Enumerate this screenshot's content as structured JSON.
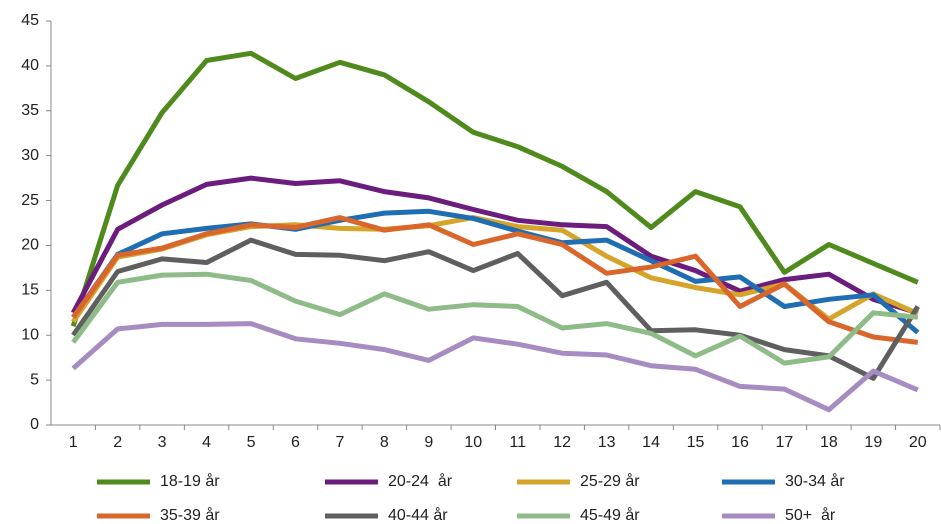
{
  "chart_data": {
    "type": "line",
    "categories": [
      "1",
      "2",
      "3",
      "4",
      "5",
      "6",
      "7",
      "8",
      "9",
      "10",
      "11",
      "12",
      "13",
      "14",
      "15",
      "16",
      "17",
      "18",
      "19",
      "20"
    ],
    "ylim": [
      0,
      45
    ],
    "yticks": [
      0,
      5,
      10,
      15,
      20,
      25,
      30,
      35,
      40,
      45
    ],
    "grid": false,
    "series": [
      {
        "name": "18-19 år",
        "color": "#4e8a1c",
        "values": [
          11,
          26.7,
          34.8,
          40.6,
          41.4,
          38.6,
          40.4,
          39,
          36,
          32.6,
          31,
          28.8,
          26,
          22,
          26,
          24.3,
          17,
          20.1,
          18,
          15.9
        ]
      },
      {
        "name": "20-24  år",
        "color": "#6b1c7c",
        "values": [
          12.5,
          21.8,
          24.5,
          26.8,
          27.5,
          26.9,
          27.2,
          26,
          25.3,
          24,
          22.8,
          22.3,
          22.1,
          18.8,
          17.2,
          14.9,
          16.2,
          16.8,
          14,
          12.5
        ]
      },
      {
        "name": "25-29 år",
        "color": "#d6a32b",
        "values": [
          11.5,
          18.7,
          19.6,
          21.2,
          22.1,
          22.3,
          21.9,
          21.8,
          22.2,
          23.1,
          22.1,
          21.7,
          18.8,
          16.4,
          15.3,
          14.5,
          15.7,
          11.8,
          14.6,
          12.4
        ]
      },
      {
        "name": "30-34 år",
        "color": "#1f6db3",
        "values": [
          12,
          19,
          21.3,
          21.9,
          22.4,
          21.8,
          22.8,
          23.6,
          23.8,
          23,
          21.6,
          20.3,
          20.6,
          18.3,
          16,
          16.5,
          13.2,
          14,
          14.5,
          10.3
        ]
      },
      {
        "name": "35-39 år",
        "color": "#d9662a",
        "values": [
          12,
          18.9,
          19.7,
          21.3,
          22.3,
          22,
          23.1,
          21.7,
          22.3,
          20.1,
          21.3,
          20.1,
          16.9,
          17.6,
          18.8,
          13.2,
          15.7,
          11.5,
          9.8,
          9.2
        ]
      },
      {
        "name": "40-44 år",
        "color": "#5f5f5f",
        "values": [
          10,
          17.1,
          18.5,
          18.1,
          20.6,
          19,
          18.9,
          18.3,
          19.3,
          17.2,
          19.1,
          14.4,
          15.9,
          10.5,
          10.6,
          10,
          8.4,
          7.7,
          5.2,
          13.2
        ]
      },
      {
        "name": "45-49 år",
        "color": "#8fbb89",
        "values": [
          9.2,
          15.9,
          16.7,
          16.8,
          16.1,
          13.8,
          12.3,
          14.6,
          12.9,
          13.4,
          13.2,
          10.8,
          11.3,
          10.2,
          7.7,
          9.9,
          6.9,
          7.6,
          12.5,
          12
        ]
      },
      {
        "name": "50+  år",
        "color": "#a68cc0",
        "values": [
          6.3,
          10.7,
          11.2,
          11.2,
          11.3,
          9.6,
          9.1,
          8.4,
          7.2,
          9.7,
          9,
          8,
          7.8,
          6.6,
          6.2,
          4.3,
          4,
          1.7,
          6,
          3.9
        ]
      }
    ]
  }
}
